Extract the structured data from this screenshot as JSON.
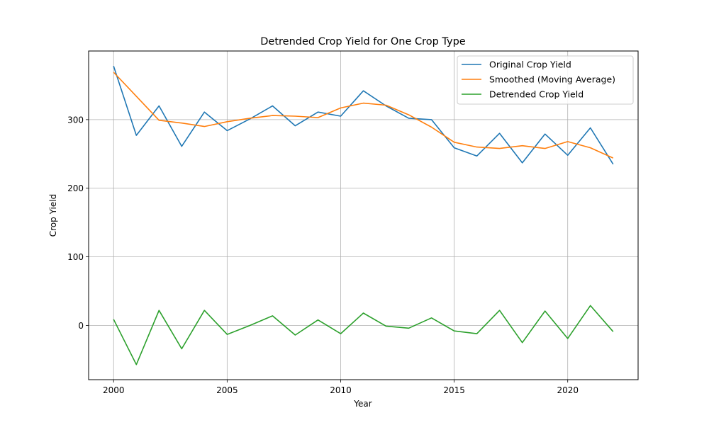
{
  "chart_data": {
    "type": "line",
    "title": "Detrended Crop Yield for One Crop Type",
    "xlabel": "Year",
    "ylabel": "Crop Yield",
    "xlim": [
      1998.9,
      2023.1
    ],
    "ylim": [
      -79,
      400
    ],
    "x_ticks": [
      2000,
      2005,
      2010,
      2015,
      2020
    ],
    "y_ticks": [
      0,
      100,
      200,
      300
    ],
    "grid": true,
    "legend_position": "top-right",
    "x": [
      2000,
      2001,
      2002,
      2003,
      2004,
      2005,
      2006,
      2007,
      2008,
      2009,
      2010,
      2011,
      2012,
      2013,
      2014,
      2015,
      2016,
      2017,
      2018,
      2019,
      2020,
      2021,
      2022
    ],
    "series": [
      {
        "name": "Original Crop Yield",
        "color": "#1f77b4",
        "values": [
          378,
          277,
          320,
          261,
          311,
          284,
          301,
          320,
          291,
          311,
          305,
          342,
          320,
          302,
          300,
          259,
          247,
          280,
          237,
          279,
          248,
          288,
          235
        ]
      },
      {
        "name": "Smoothed (Moving Average)",
        "color": "#ff7f0e",
        "values": [
          369,
          334,
          299,
          295,
          290,
          297,
          302,
          306,
          305,
          303,
          317,
          324,
          321,
          307,
          289,
          267,
          260,
          258,
          262,
          258,
          268,
          259,
          244
        ]
      },
      {
        "name": "Detrended Crop Yield",
        "color": "#2ca02c",
        "values": [
          9,
          -57,
          22,
          -34,
          22,
          -13,
          0,
          14,
          -14,
          8,
          -12,
          18,
          -1,
          -4,
          11,
          -8,
          -12,
          22,
          -25,
          21,
          -19,
          29,
          -9
        ]
      }
    ]
  }
}
